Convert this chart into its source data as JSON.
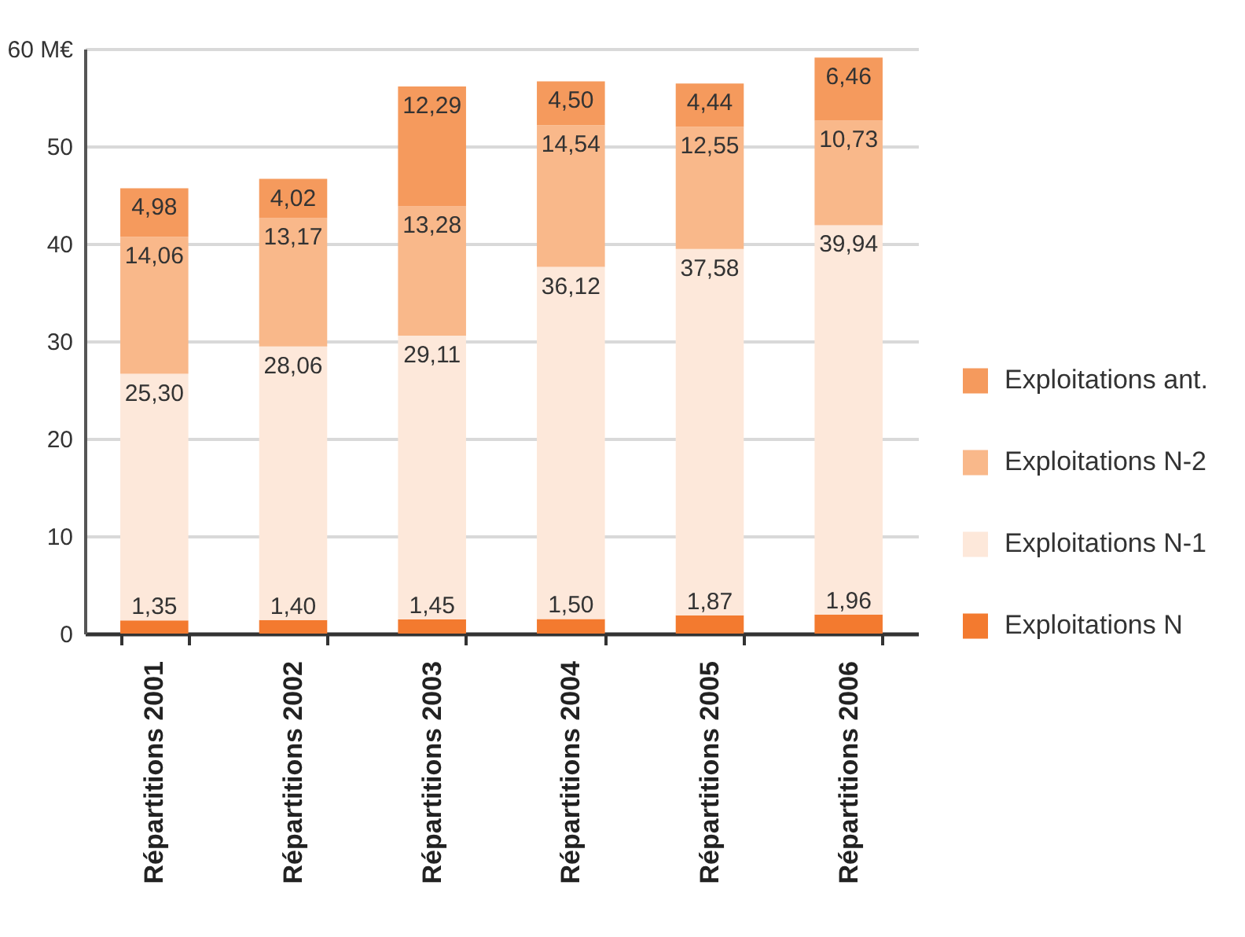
{
  "chart_data": {
    "type": "bar",
    "stacked": true,
    "categories": [
      "Répartitions 2001",
      "Répartitions 2002",
      "Répartitions 2003",
      "Répartitions 2004",
      "Répartitions 2005",
      "Répartitions 2006"
    ],
    "ylim": [
      0,
      60
    ],
    "yticks": [
      0,
      10,
      20,
      30,
      40,
      50,
      {
        "value": 60,
        "label": "60 M€"
      }
    ],
    "grid": "y",
    "legend": "right",
    "series": [
      {
        "name": "Exploitations N",
        "color": "#f37a2f",
        "values": [
          1.35,
          1.4,
          1.45,
          1.5,
          1.87,
          1.96
        ],
        "value_labels": [
          "1,35",
          "1,40",
          "1,45",
          "1,50",
          "1,87",
          "1,96"
        ]
      },
      {
        "name": "Exploitations N-1",
        "color": "#fde8da",
        "values": [
          25.3,
          28.06,
          29.11,
          36.12,
          37.58,
          39.94
        ],
        "value_labels": [
          "25,30",
          "28,06",
          "29,11",
          "36,12",
          "37,58",
          "39,94"
        ]
      },
      {
        "name": "Exploitations N-2",
        "color": "#f9b88a",
        "values": [
          14.06,
          13.17,
          13.28,
          14.54,
          12.55,
          10.73
        ],
        "value_labels": [
          "14,06",
          "13,17",
          "13,28",
          "14,54",
          "12,55",
          "10,73"
        ]
      },
      {
        "name": "Exploitations ant.",
        "color": "#f59a5d",
        "values": [
          4.98,
          4.02,
          12.29,
          4.5,
          4.44,
          6.46
        ],
        "value_labels": [
          "4,98",
          "4,02",
          "12,29",
          "4,50",
          "4,44",
          "6,46"
        ]
      }
    ]
  }
}
